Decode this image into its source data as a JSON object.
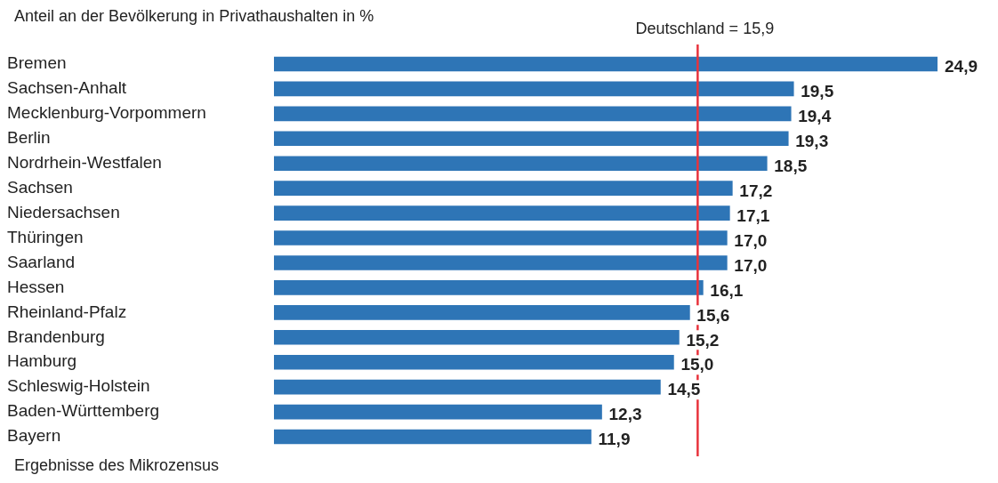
{
  "chart_data": {
    "type": "bar",
    "orientation": "horizontal",
    "title": "Anteil an der Bevölkerung in Privathaushalten in %",
    "categories": [
      "Bremen",
      "Sachsen-Anhalt",
      "Mecklenburg-Vorpommern",
      "Berlin",
      "Nordrhein-Westfalen",
      "Sachsen",
      "Niedersachsen",
      "Thüringen",
      "Saarland",
      "Hessen",
      "Rheinland-Pfalz",
      "Brandenburg",
      "Hamburg",
      "Schleswig-Holstein",
      "Baden-Württemberg",
      "Bayern"
    ],
    "values": [
      24.9,
      19.5,
      19.4,
      19.3,
      18.5,
      17.2,
      17.1,
      17.0,
      17.0,
      16.1,
      15.6,
      15.2,
      15.0,
      14.5,
      12.3,
      11.9
    ],
    "value_labels": [
      "24,9",
      "19,5",
      "19,4",
      "19,3",
      "18,5",
      "17,2",
      "17,1",
      "17,0",
      "17,0",
      "16,1",
      "15,6",
      "15,2",
      "15,0",
      "14,5",
      "12,3",
      "11,9"
    ],
    "color": "#2e75b6",
    "ref_lines": [
      {
        "axis": "x",
        "value": 15.9,
        "label": "Deutschland = 15,9",
        "color": "#e8333c"
      }
    ],
    "annotations": [
      "Ergebnisse des Mikrozensus"
    ],
    "grid": false,
    "legend": false
  }
}
